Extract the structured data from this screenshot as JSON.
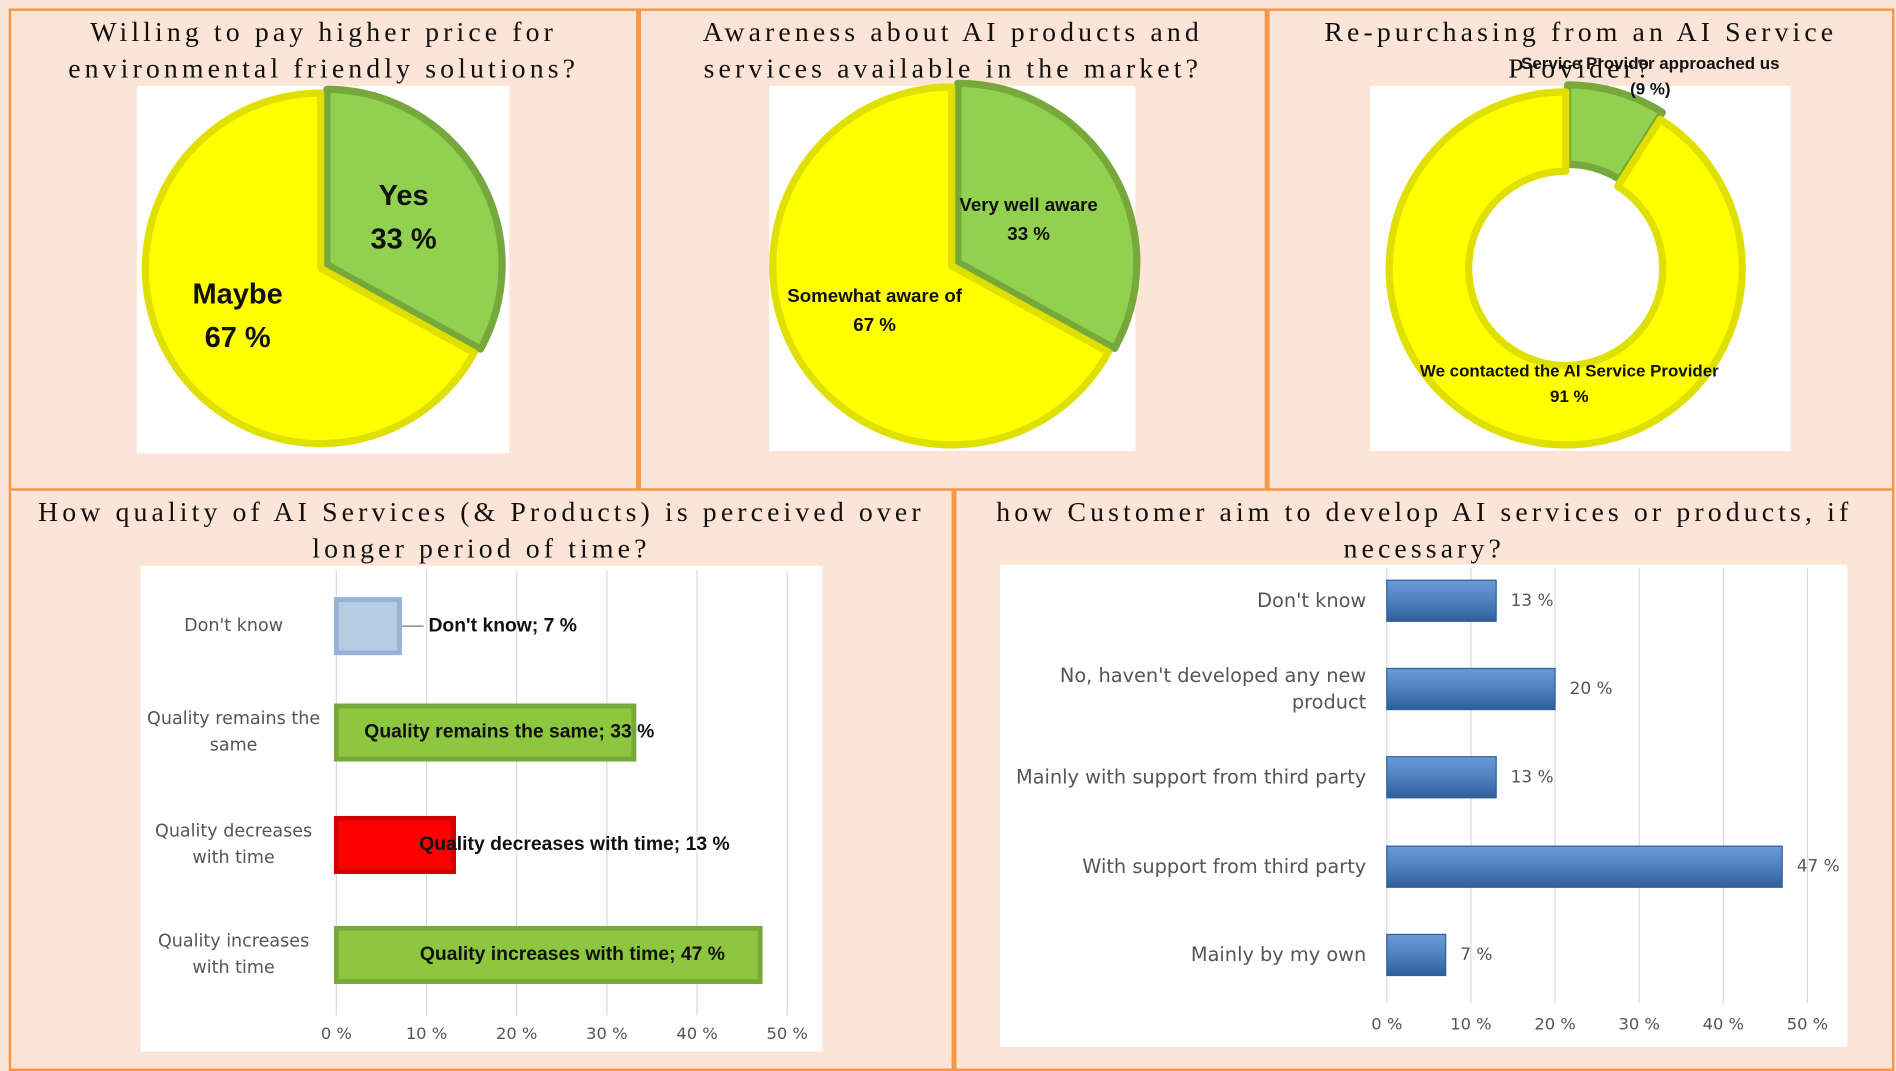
{
  "chart_data": [
    {
      "type": "pie",
      "title": "Willing to pay higher price for environmental friendly solutions?",
      "categories": [
        "Yes",
        "Maybe"
      ],
      "values": [
        33,
        67
      ],
      "value_labels": [
        "33 %",
        "67 %"
      ],
      "colors": [
        "#92d050",
        "#ffff00"
      ]
    },
    {
      "type": "pie",
      "title": "Awareness about AI products and services available in the market?",
      "categories": [
        "Very well aware",
        "Somewhat aware of"
      ],
      "values": [
        33,
        67
      ],
      "value_labels": [
        "33 %",
        "67 %"
      ],
      "colors": [
        "#92d050",
        "#ffff00"
      ]
    },
    {
      "type": "donut",
      "title": "Re-purchasing from an AI Service Provider?",
      "categories": [
        "Service Provider approached us",
        "We contacted the AI Service Provider"
      ],
      "values": [
        9,
        91
      ],
      "value_labels": [
        "(9 %)",
        "91 %"
      ],
      "colors": [
        "#92d050",
        "#ffff00"
      ]
    },
    {
      "type": "bar",
      "title": "How quality of AI Services (& Products) is perceived over longer period of time?",
      "categories": [
        "Don't know",
        "Quality remains the same",
        "Quality decreases with time",
        "Quality increases with time"
      ],
      "values": [
        7,
        33,
        13,
        47
      ],
      "value_labels": [
        "Don't know; 7 %",
        "Quality remains the same; 33 %",
        "Quality decreases with time; 13 %",
        "Quality increases with time; 47 %"
      ],
      "colors": [
        "#b8cce4",
        "#8dc63f",
        "#ff0000",
        "#8dc63f"
      ],
      "xlim": [
        0,
        50
      ],
      "xticks": [
        {
          "value": 0,
          "label": "0 %"
        },
        {
          "value": 10,
          "label": "10 %"
        },
        {
          "value": 20,
          "label": "20 %"
        },
        {
          "value": 30,
          "label": "30 %"
        },
        {
          "value": 40,
          "label": "40 %"
        },
        {
          "value": 50,
          "label": "50 %"
        }
      ],
      "grid": true
    },
    {
      "type": "bar",
      "title": "how Customer aim to develop AI services or products, if necessary?",
      "categories": [
        "Don't know",
        "No, haven't developed any new product",
        "Mainly with support from third party",
        "With support from third party",
        "Mainly by my own"
      ],
      "values": [
        13,
        20,
        13,
        47,
        7
      ],
      "value_labels": [
        "13 %",
        "20 %",
        "13 %",
        "47 %",
        "7 %"
      ],
      "color": "#4f81bd",
      "xlim": [
        0,
        50
      ],
      "xticks": [
        {
          "value": 0,
          "label": "0 %"
        },
        {
          "value": 10,
          "label": "10 %"
        },
        {
          "value": 20,
          "label": "20 %"
        },
        {
          "value": 30,
          "label": "30 %"
        },
        {
          "value": 40,
          "label": "40 %"
        },
        {
          "value": 50,
          "label": "50 %"
        }
      ],
      "grid": true
    }
  ]
}
